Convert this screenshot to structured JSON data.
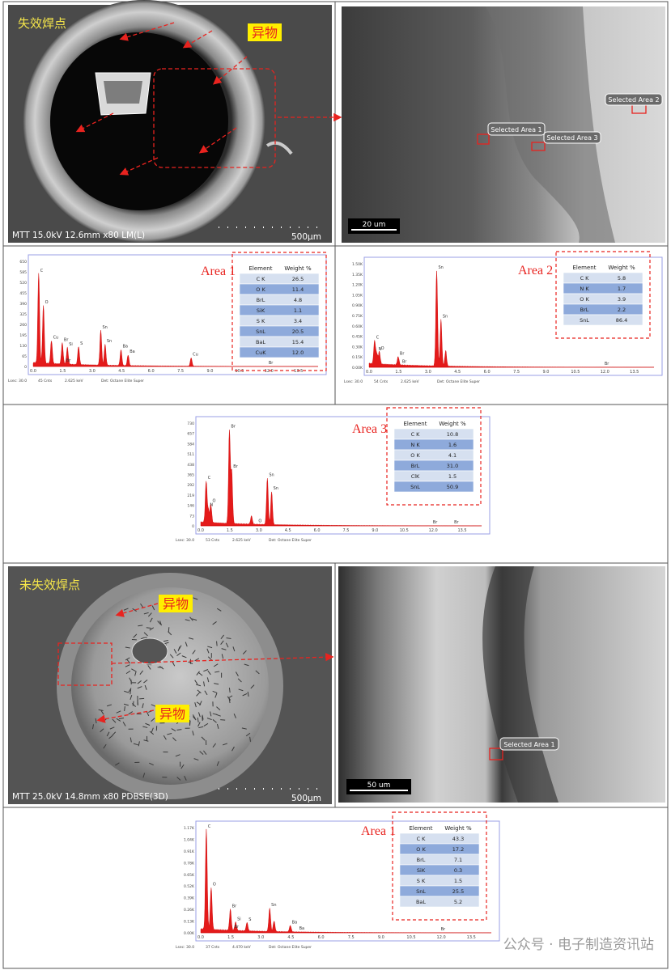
{
  "failed_joint": {
    "label": "失效焊点",
    "callout": "异物",
    "info": "MTT 15.0kV 12.6mm x80 LM(L)",
    "scale": "500μm",
    "zoom_areas": [
      "Selected Area 1",
      "Selected Area 3",
      "Selected Area 2"
    ],
    "zoom_scale": "20 um"
  },
  "good_joint": {
    "label": "未失效焊点",
    "callouts": [
      "异物",
      "异物"
    ],
    "info": "MTT 25.0kV 14.8mm x80 PDBSE(3D)",
    "scale": "500μm",
    "zoom_areas": [
      "Selected Area 1"
    ],
    "zoom_scale": "50 um"
  },
  "spectra": [
    {
      "title": "Area 1",
      "header": [
        "Element",
        "Weight %"
      ],
      "rows": [
        [
          "C K",
          "26.5"
        ],
        [
          "O K",
          "11.4"
        ],
        [
          "BrL",
          "4.8"
        ],
        [
          "SiK",
          "1.1"
        ],
        [
          "S K",
          "3.4"
        ],
        [
          "SnL",
          "20.5"
        ],
        [
          "BaL",
          "15.4"
        ],
        [
          "CuK",
          "12.0"
        ]
      ],
      "yticks": [
        "650",
        "585",
        "520",
        "455",
        "390",
        "325",
        "260",
        "195",
        "130",
        "65",
        "0"
      ],
      "xticks": [
        "0.0",
        "1.5",
        "3.0",
        "4.5",
        "6.0",
        "7.5",
        "9.0",
        "10.5",
        "12.0",
        "13.5"
      ],
      "peak_labels": [
        "C",
        "O",
        "Cu",
        "Br",
        "Si",
        "S",
        "Sn",
        "Sn",
        "Ba",
        "Ba",
        "Cu",
        "Br",
        "Br"
      ],
      "footer": [
        "Lsec: 30.0",
        "45 Cnts",
        "2.625 keV",
        "Det: Octane Elite Super"
      ]
    },
    {
      "title": "Area 2",
      "header": [
        "Element",
        "Weight %"
      ],
      "rows": [
        [
          "C K",
          "5.8"
        ],
        [
          "N K",
          "1.7"
        ],
        [
          "O K",
          "3.9"
        ],
        [
          "BrL",
          "2.2"
        ],
        [
          "SnL",
          "86.4"
        ]
      ],
      "yticks": [
        "1.50K",
        "1.35K",
        "1.20K",
        "1.05K",
        "0.90K",
        "0.75K",
        "0.60K",
        "0.45K",
        "0.30K",
        "0.15K",
        "0.00K"
      ],
      "xticks": [
        "0.0",
        "1.5",
        "3.0",
        "4.5",
        "6.0",
        "7.5",
        "9.0",
        "10.5",
        "12.0",
        "13.5"
      ],
      "peak_labels": [
        "C",
        "N",
        "O",
        "Br",
        "Sn",
        "Sn",
        "Br",
        "Br"
      ],
      "footer": [
        "Lsec: 30.0",
        "54 Cnts",
        "2.625 keV",
        "Det: Octane Elite Super"
      ]
    },
    {
      "title": "Area 3",
      "header": [
        "Element",
        "Weight %"
      ],
      "rows": [
        [
          "C K",
          "10.8"
        ],
        [
          "N K",
          "1.6"
        ],
        [
          "O K",
          "4.1"
        ],
        [
          "BrL",
          "31.0"
        ],
        [
          "ClK",
          "1.5"
        ],
        [
          "SnL",
          "50.9"
        ]
      ],
      "yticks": [
        "730",
        "657",
        "584",
        "511",
        "438",
        "365",
        "292",
        "219",
        "146",
        "73",
        "0"
      ],
      "xticks": [
        "0.0",
        "1.5",
        "3.0",
        "4.5",
        "6.0",
        "7.5",
        "9.0",
        "10.5",
        "12.0",
        "13.5"
      ],
      "peak_labels": [
        "C",
        "N",
        "O",
        "Br",
        "Br",
        "O",
        "Sn",
        "Sn",
        "Br",
        "Br"
      ],
      "footer": [
        "Lsec: 30.0",
        "53 Cnts",
        "2.625 keV",
        "Det: Octane Elite Super"
      ]
    },
    {
      "title": "Area 1",
      "header": [
        "Element",
        "Weight %"
      ],
      "rows": [
        [
          "C K",
          "43.3"
        ],
        [
          "O K",
          "17.2"
        ],
        [
          "BrL",
          "7.1"
        ],
        [
          "SiK",
          "0.3"
        ],
        [
          "S K",
          "1.5"
        ],
        [
          "SnL",
          "25.5"
        ],
        [
          "BaL",
          "5.2"
        ]
      ],
      "yticks": [
        "1.17K",
        "1.04K",
        "0.91K",
        "0.78K",
        "0.65K",
        "0.52K",
        "0.39K",
        "0.26K",
        "0.13K",
        "0.00K"
      ],
      "xticks": [
        "0.0",
        "1.5",
        "3.0",
        "4.5",
        "6.0",
        "7.5",
        "9.0",
        "10.5",
        "12.0",
        "13.5"
      ],
      "peak_labels": [
        "C",
        "O",
        "Br",
        "Si",
        "S",
        "Sn",
        "Ba",
        "Ba",
        "Br",
        "Br"
      ],
      "footer": [
        "Lsec: 30.0",
        "37 Cnts",
        "4.470 keV",
        "Det: Octane Elite Super"
      ]
    }
  ],
  "watermark": "公众号 · 电子制造资讯站"
}
